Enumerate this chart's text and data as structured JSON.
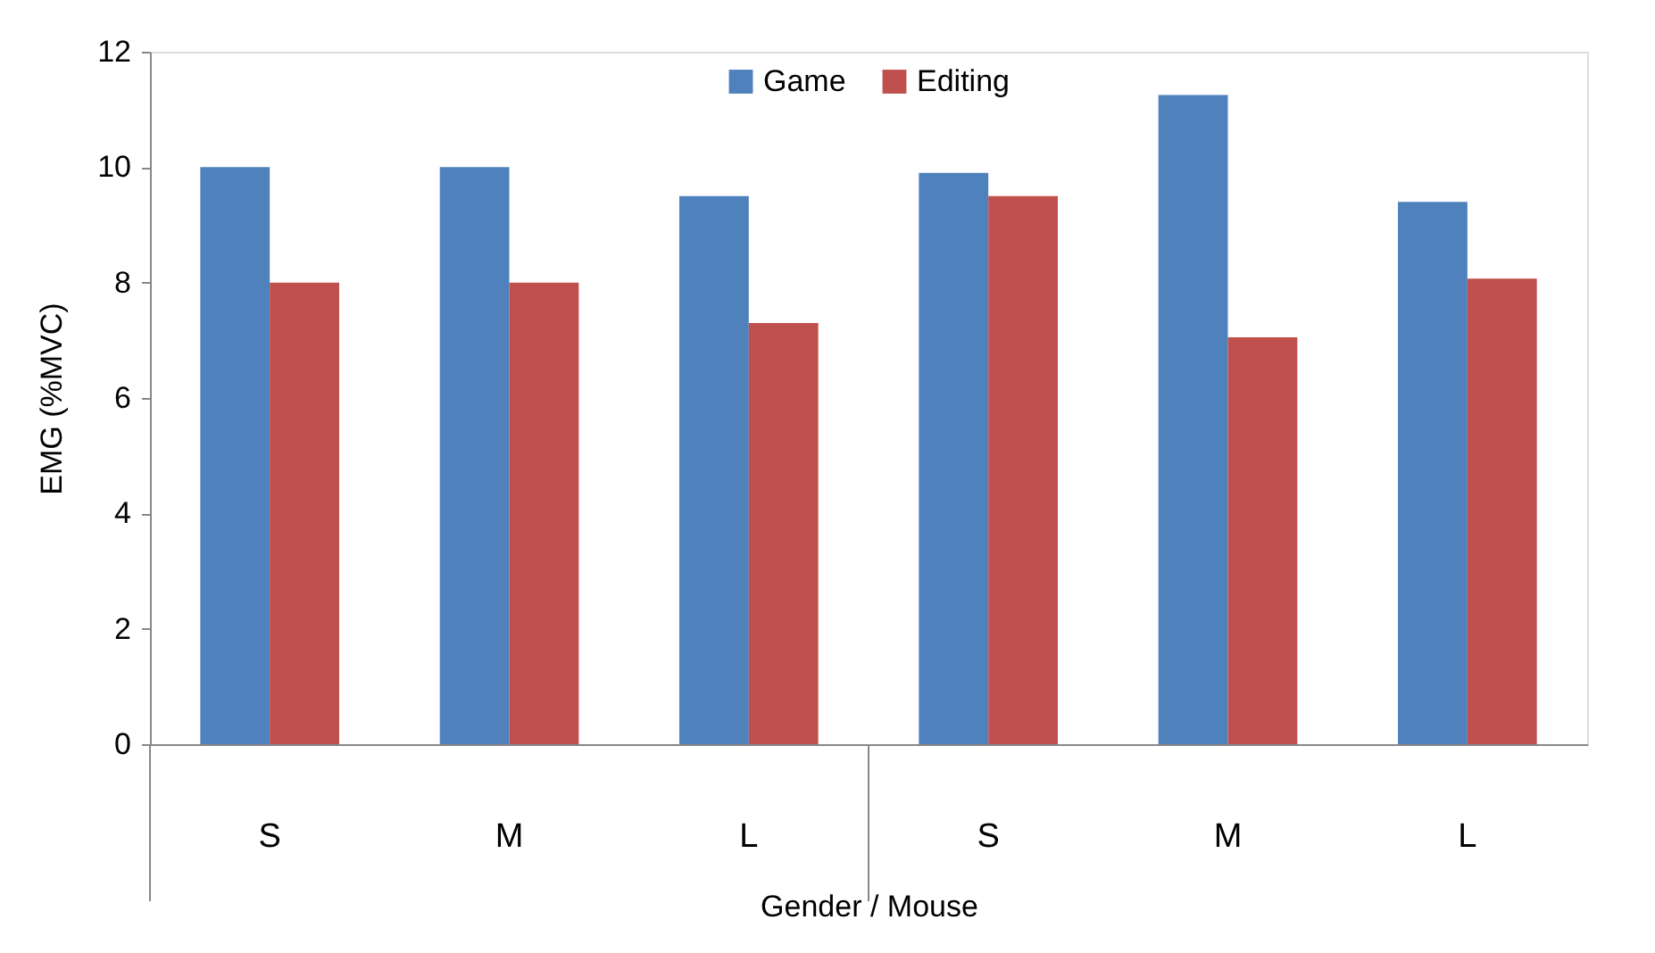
{
  "chart_data": {
    "type": "bar",
    "xlabel": "Gender / Mouse",
    "ylabel": "EMG (%MVC)",
    "categories": [
      "S",
      "M",
      "L",
      "S",
      "M",
      "L"
    ],
    "series": [
      {
        "name": "Game",
        "color": "#4f81bd",
        "values": [
          10.0,
          10.0,
          9.5,
          9.9,
          11.25,
          9.4
        ]
      },
      {
        "name": "Editing",
        "color": "#c0504d",
        "values": [
          8.0,
          8.0,
          7.3,
          9.5,
          7.05,
          8.07
        ]
      }
    ],
    "ylim": [
      0,
      12
    ],
    "yticks": [
      0,
      2,
      4,
      6,
      8,
      10,
      12
    ],
    "grid": false,
    "legend": "top"
  }
}
